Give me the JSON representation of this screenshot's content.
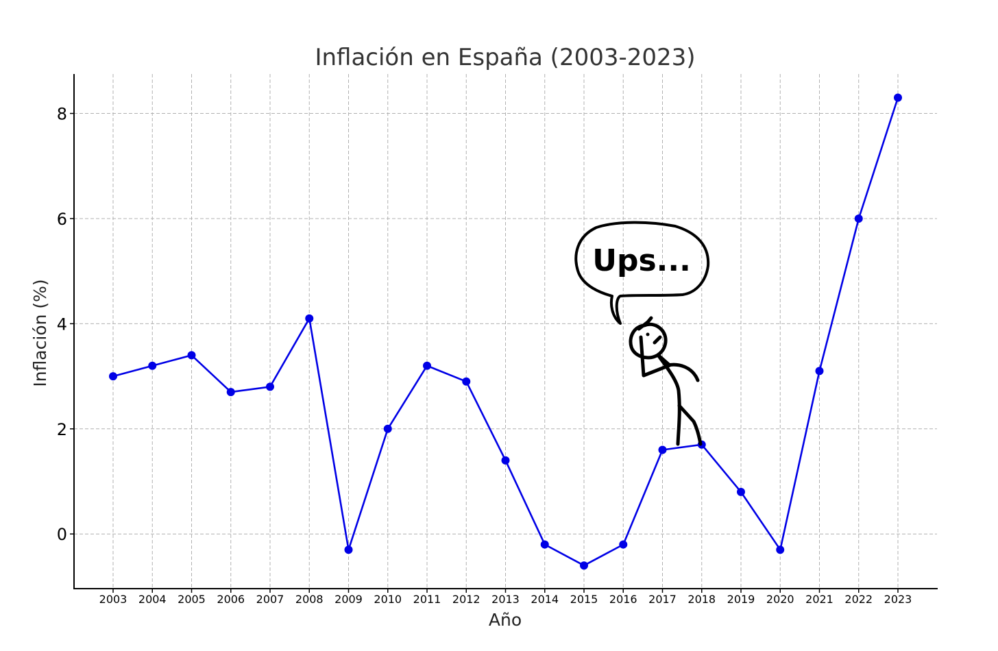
{
  "chart_data": {
    "type": "line",
    "title": "Inflación en España (2003-2023)",
    "xlabel": "Año",
    "ylabel": "Inflación (%)",
    "categories": [
      "2003",
      "2004",
      "2005",
      "2006",
      "2007",
      "2008",
      "2009",
      "2010",
      "2011",
      "2012",
      "2013",
      "2014",
      "2015",
      "2016",
      "2017",
      "2018",
      "2019",
      "2020",
      "2021",
      "2022",
      "2023"
    ],
    "series": [
      {
        "values": [
          3.0,
          3.2,
          3.4,
          2.7,
          2.8,
          4.1,
          -0.3,
          2.0,
          3.2,
          2.9,
          1.4,
          -0.2,
          -0.6,
          -0.2,
          1.6,
          1.7,
          0.8,
          -0.3,
          3.1,
          6.0,
          8.3
        ]
      }
    ],
    "yticks": [
      "0",
      "2",
      "4",
      "6",
      "8"
    ],
    "ylim": [
      -1.04,
      8.75
    ],
    "grid": true,
    "line_color": "#0000e6",
    "annotation": {
      "text": "Ups...",
      "figure": "stick-figure-on-line"
    }
  }
}
